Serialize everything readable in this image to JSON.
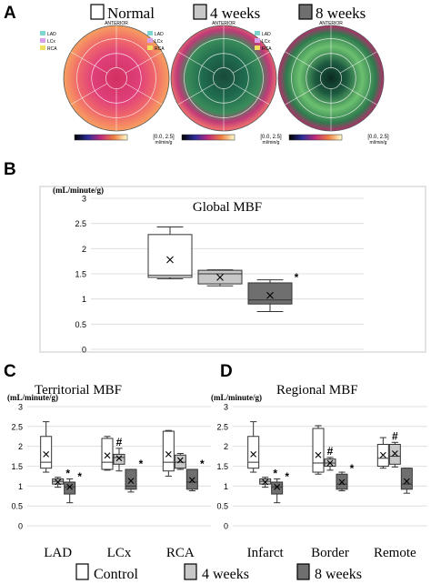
{
  "panels": {
    "a": {
      "letter": "A"
    },
    "b": {
      "letter": "B"
    },
    "c": {
      "letter": "C"
    },
    "d": {
      "letter": "D"
    }
  },
  "legend_top": {
    "items": [
      {
        "label": "Normal",
        "swatch": "#ffffff"
      },
      {
        "label": "4 weeks",
        "swatch": "#c8c8c8"
      },
      {
        "label": "8 weeks",
        "swatch": "#6f6f6f"
      }
    ]
  },
  "legend_bottom": {
    "items": [
      {
        "label": "Control",
        "swatch": "#ffffff"
      },
      {
        "label": "4 weeks",
        "swatch": "#c8c8c8"
      },
      {
        "label": "8 weeks",
        "swatch": "#6f6f6f"
      }
    ]
  },
  "maps": {
    "vessel_legend": [
      "LAD",
      "LCx",
      "RCA"
    ],
    "vessel_colors": [
      "#7fd6d0",
      "#d8a0e8",
      "#f0e060"
    ],
    "top_label": "ANTERIOR",
    "scale_text": "[0.0, 2.5]",
    "unit_text": "ml/min/g"
  },
  "chart_data": [
    {
      "type": "box",
      "title": "Global MBF",
      "ylabel": "(mL/minute/g)",
      "ylim": [
        0,
        3
      ],
      "yticks": [
        "0",
        "0.5",
        "1",
        "1.5",
        "2",
        "2.5",
        "3"
      ],
      "categories": [
        ""
      ],
      "series": [
        {
          "name": "Normal",
          "color": "#ffffff",
          "boxes": [
            {
              "min": 1.4,
              "q1": 1.43,
              "median": 1.47,
              "q3": 2.28,
              "max": 2.43,
              "mean": 1.78,
              "sig": ""
            }
          ]
        },
        {
          "name": "4 weeks",
          "color": "#c8c8c8",
          "boxes": [
            {
              "min": 1.26,
              "q1": 1.3,
              "median": 1.5,
              "q3": 1.57,
              "max": 1.58,
              "mean": 1.43,
              "sig": ""
            }
          ]
        },
        {
          "name": "8 weeks",
          "color": "#6f6f6f",
          "boxes": [
            {
              "min": 0.75,
              "q1": 0.9,
              "median": 0.98,
              "q3": 1.32,
              "max": 1.38,
              "mean": 1.07,
              "sig": "*"
            }
          ]
        }
      ]
    },
    {
      "type": "box",
      "title": "Territorial MBF",
      "ylabel": "(mL/minute/g)",
      "ylim": [
        0,
        3
      ],
      "yticks": [
        "0",
        "0.5",
        "1",
        "1.5",
        "2",
        "2.5",
        "3"
      ],
      "categories": [
        "LAD",
        "LCx",
        "RCA"
      ],
      "series": [
        {
          "name": "Control",
          "color": "#ffffff",
          "boxes": [
            {
              "min": 1.35,
              "q1": 1.45,
              "median": 1.6,
              "q3": 2.25,
              "max": 2.62,
              "mean": 1.8,
              "sig": ""
            },
            {
              "min": 1.4,
              "q1": 1.42,
              "median": 1.6,
              "q3": 2.2,
              "max": 2.25,
              "mean": 1.77,
              "sig": ""
            },
            {
              "min": 1.25,
              "q1": 1.38,
              "median": 1.6,
              "q3": 2.38,
              "max": 2.4,
              "mean": 1.8,
              "sig": ""
            }
          ]
        },
        {
          "name": "4 weeks",
          "color": "#c8c8c8",
          "boxes": [
            {
              "min": 0.97,
              "q1": 1.05,
              "median": 1.12,
              "q3": 1.18,
              "max": 1.22,
              "mean": 1.1,
              "sig": "*"
            },
            {
              "min": 1.38,
              "q1": 1.55,
              "median": 1.72,
              "q3": 1.8,
              "max": 1.95,
              "mean": 1.7,
              "sig": "#"
            },
            {
              "min": 1.42,
              "q1": 1.45,
              "median": 1.6,
              "q3": 1.78,
              "max": 1.82,
              "mean": 1.65,
              "sig": ""
            }
          ]
        },
        {
          "name": "8 weeks",
          "color": "#6f6f6f",
          "boxes": [
            {
              "min": 0.58,
              "q1": 0.8,
              "median": 0.98,
              "q3": 1.1,
              "max": 1.18,
              "mean": 0.98,
              "sig": "*"
            },
            {
              "min": 0.85,
              "q1": 0.92,
              "median": 1.0,
              "q3": 1.42,
              "max": 1.42,
              "mean": 1.13,
              "sig": "*"
            },
            {
              "min": 0.88,
              "q1": 0.92,
              "median": 1.1,
              "q3": 1.42,
              "max": 1.42,
              "mean": 1.15,
              "sig": "*"
            }
          ]
        }
      ]
    },
    {
      "type": "box",
      "title": "Regional MBF",
      "ylabel": "(mL/minute/g)",
      "ylim": [
        0,
        3
      ],
      "yticks": [
        "0",
        "0.5",
        "1",
        "1.5",
        "2",
        "2.5",
        "3"
      ],
      "categories": [
        "Infarct",
        "Border",
        "Remote"
      ],
      "series": [
        {
          "name": "Control",
          "color": "#ffffff",
          "boxes": [
            {
              "min": 1.35,
              "q1": 1.45,
              "median": 1.6,
              "q3": 2.25,
              "max": 2.62,
              "mean": 1.8,
              "sig": ""
            },
            {
              "min": 1.3,
              "q1": 1.35,
              "median": 1.58,
              "q3": 2.45,
              "max": 2.52,
              "mean": 1.78,
              "sig": ""
            },
            {
              "min": 1.45,
              "q1": 1.5,
              "median": 1.7,
              "q3": 2.05,
              "max": 2.22,
              "mean": 1.78,
              "sig": ""
            }
          ]
        },
        {
          "name": "4 weeks",
          "color": "#c8c8c8",
          "boxes": [
            {
              "min": 0.97,
              "q1": 1.05,
              "median": 1.12,
              "q3": 1.18,
              "max": 1.22,
              "mean": 1.1,
              "sig": "*"
            },
            {
              "min": 1.4,
              "q1": 1.5,
              "median": 1.58,
              "q3": 1.68,
              "max": 1.72,
              "mean": 1.58,
              "sig": "#"
            },
            {
              "min": 1.48,
              "q1": 1.55,
              "median": 1.75,
              "q3": 2.05,
              "max": 2.1,
              "mean": 1.82,
              "sig": "#"
            }
          ]
        },
        {
          "name": "8 weeks",
          "color": "#6f6f6f",
          "boxes": [
            {
              "min": 0.58,
              "q1": 0.8,
              "median": 0.98,
              "q3": 1.1,
              "max": 1.18,
              "mean": 0.98,
              "sig": "*"
            },
            {
              "min": 0.88,
              "q1": 0.92,
              "median": 1.05,
              "q3": 1.3,
              "max": 1.35,
              "mean": 1.1,
              "sig": "*"
            },
            {
              "min": 0.82,
              "q1": 0.92,
              "median": 1.05,
              "q3": 1.45,
              "max": 1.45,
              "mean": 1.12,
              "sig": ""
            }
          ]
        }
      ]
    }
  ]
}
